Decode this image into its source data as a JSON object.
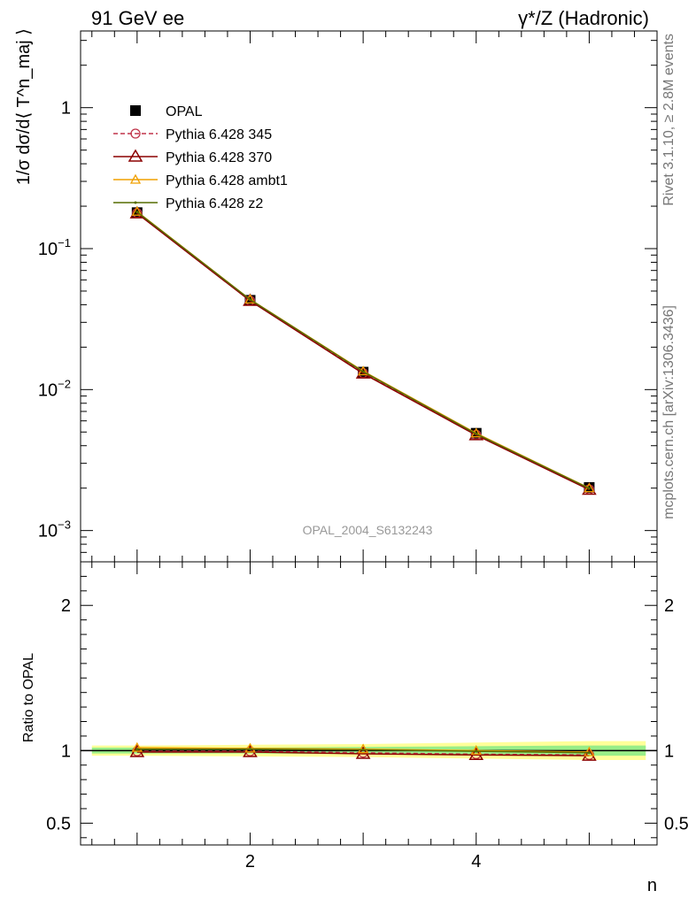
{
  "header": {
    "left": "91 GeV ee",
    "right": "γ*/Z (Hadronic)"
  },
  "side_labels": {
    "rivet": "Rivet 3.1.10, ≥ 2.8M events",
    "mcplots": "mcplots.cern.ch [arXiv:1306.3436]"
  },
  "watermark": "OPAL_2004_S6132243",
  "chart_data": [
    {
      "type": "line",
      "panel": "main",
      "ylabel": "1/σ dσ/d⟨ T^n_maj ⟩",
      "xlabel": "n",
      "yscale": "log",
      "xlim": [
        0.5,
        5.6
      ],
      "ylim": [
        0.0006,
        3.5
      ],
      "x_ticks": [
        2,
        4
      ],
      "y_ticks": [
        {
          "value": 0.001,
          "base": "10",
          "exp": "−3"
        },
        {
          "value": 0.01,
          "base": "10",
          "exp": "−2"
        },
        {
          "value": 0.1,
          "base": "10",
          "exp": "−1"
        },
        {
          "value": 1,
          "base": "1",
          "exp": ""
        }
      ],
      "x": [
        1,
        2,
        3,
        4,
        5
      ],
      "series": [
        {
          "name": "OPAL",
          "color": "#000000",
          "marker": "square",
          "values": [
            0.18,
            0.043,
            0.0133,
            0.0049,
            0.00202
          ]
        },
        {
          "name": "Pythia 6.428 345",
          "color": "#c0344a",
          "marker": "circle",
          "dash": true,
          "values": [
            0.179,
            0.0428,
            0.0131,
            0.00478,
            0.00196
          ]
        },
        {
          "name": "Pythia 6.428 370",
          "color": "#8b0000",
          "marker": "triangle",
          "values": [
            0.178,
            0.0426,
            0.013,
            0.00475,
            0.00195
          ]
        },
        {
          "name": "Pythia 6.428 ambt1",
          "color": "#f0a000",
          "marker": "triangle-open",
          "values": [
            0.183,
            0.0436,
            0.0135,
            0.0049,
            0.002
          ]
        },
        {
          "name": "Pythia 6.428 z2",
          "color": "#556b00",
          "marker": "dot",
          "values": [
            0.182,
            0.0435,
            0.0134,
            0.00485,
            0.00199
          ]
        }
      ]
    },
    {
      "type": "line",
      "panel": "ratio",
      "ylabel": "Ratio to OPAL",
      "xlabel": "n",
      "xlim": [
        0.5,
        5.6
      ],
      "ylim": [
        0.35,
        2.3
      ],
      "x_ticks": [
        2,
        4
      ],
      "y_ticks": [
        0.5,
        1,
        2
      ],
      "x": [
        1,
        2,
        3,
        4,
        5
      ],
      "band_inner": [
        0.02,
        0.02,
        0.025,
        0.03,
        0.035
      ],
      "band_outer": [
        0.035,
        0.04,
        0.045,
        0.055,
        0.065
      ],
      "series": [
        {
          "name": "Pythia 6.428 345",
          "color": "#c0344a",
          "marker": "circle",
          "dash": true,
          "values": [
            0.995,
            0.995,
            0.985,
            0.975,
            0.97
          ]
        },
        {
          "name": "Pythia 6.428 370",
          "color": "#8b0000",
          "marker": "triangle",
          "values": [
            0.99,
            0.99,
            0.978,
            0.97,
            0.965
          ]
        },
        {
          "name": "Pythia 6.428 ambt1",
          "color": "#f0a000",
          "marker": "triangle-open",
          "values": [
            1.02,
            1.015,
            1.01,
            1.0,
            0.99
          ]
        },
        {
          "name": "Pythia 6.428 z2",
          "color": "#556b00",
          "marker": "dot",
          "values": [
            1.01,
            1.01,
            1.005,
            0.995,
            0.985
          ]
        }
      ]
    }
  ]
}
